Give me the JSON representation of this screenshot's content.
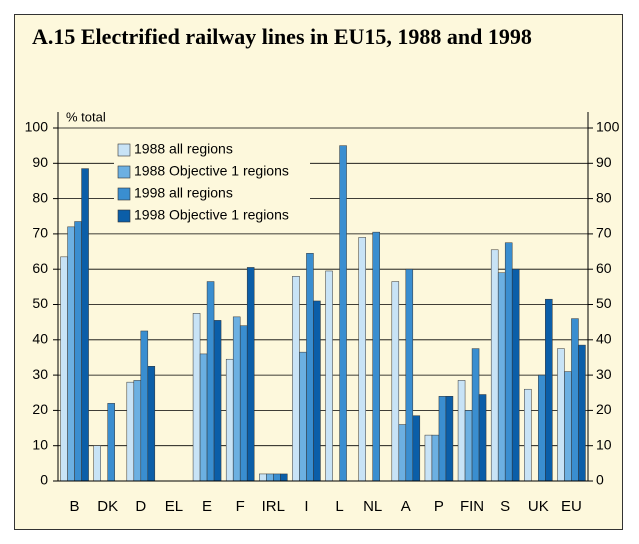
{
  "chart_data": {
    "type": "bar",
    "title": "A.15 Electrified railway lines in EU15, 1988 and 1998",
    "y_label": "% total",
    "categories": [
      "B",
      "DK",
      "D",
      "EL",
      "E",
      "F",
      "IRL",
      "I",
      "L",
      "NL",
      "A",
      "P",
      "FIN",
      "S",
      "UK",
      "EU"
    ],
    "series": [
      {
        "name": "1988 all regions",
        "color": "#c8e3f6",
        "values": [
          63.5,
          10,
          28,
          null,
          47.5,
          34.5,
          2,
          58,
          59.5,
          69,
          56.5,
          13,
          28.5,
          65.5,
          26,
          37.5
        ]
      },
      {
        "name": "1988 Objective 1 regions",
        "color": "#6cb0e2",
        "values": [
          72,
          null,
          28.5,
          null,
          36,
          46.5,
          2,
          36.5,
          null,
          null,
          16,
          13,
          20,
          59,
          null,
          31
        ]
      },
      {
        "name": "1998 all regions",
        "color": "#3a8ed0",
        "values": [
          73.5,
          22,
          42.5,
          null,
          56.5,
          44,
          2,
          64.5,
          95,
          70.5,
          60,
          24,
          37.5,
          67.5,
          30,
          46
        ]
      },
      {
        "name": "1998 Objective 1 regions",
        "color": "#0b5ea8",
        "values": [
          88.5,
          null,
          32.5,
          null,
          45.5,
          60.5,
          2,
          51,
          null,
          null,
          18.5,
          24,
          24.5,
          60,
          51.5,
          38.5
        ]
      }
    ],
    "ylim": [
      0,
      100
    ],
    "yticks": [
      0,
      10,
      20,
      30,
      40,
      50,
      60,
      70,
      80,
      90,
      100
    ],
    "y2lim": [
      0,
      100
    ],
    "y2ticks": [
      0,
      10,
      20,
      30,
      40,
      50,
      60,
      70,
      80,
      90,
      100
    ],
    "grid": true,
    "legend": "upper left"
  }
}
